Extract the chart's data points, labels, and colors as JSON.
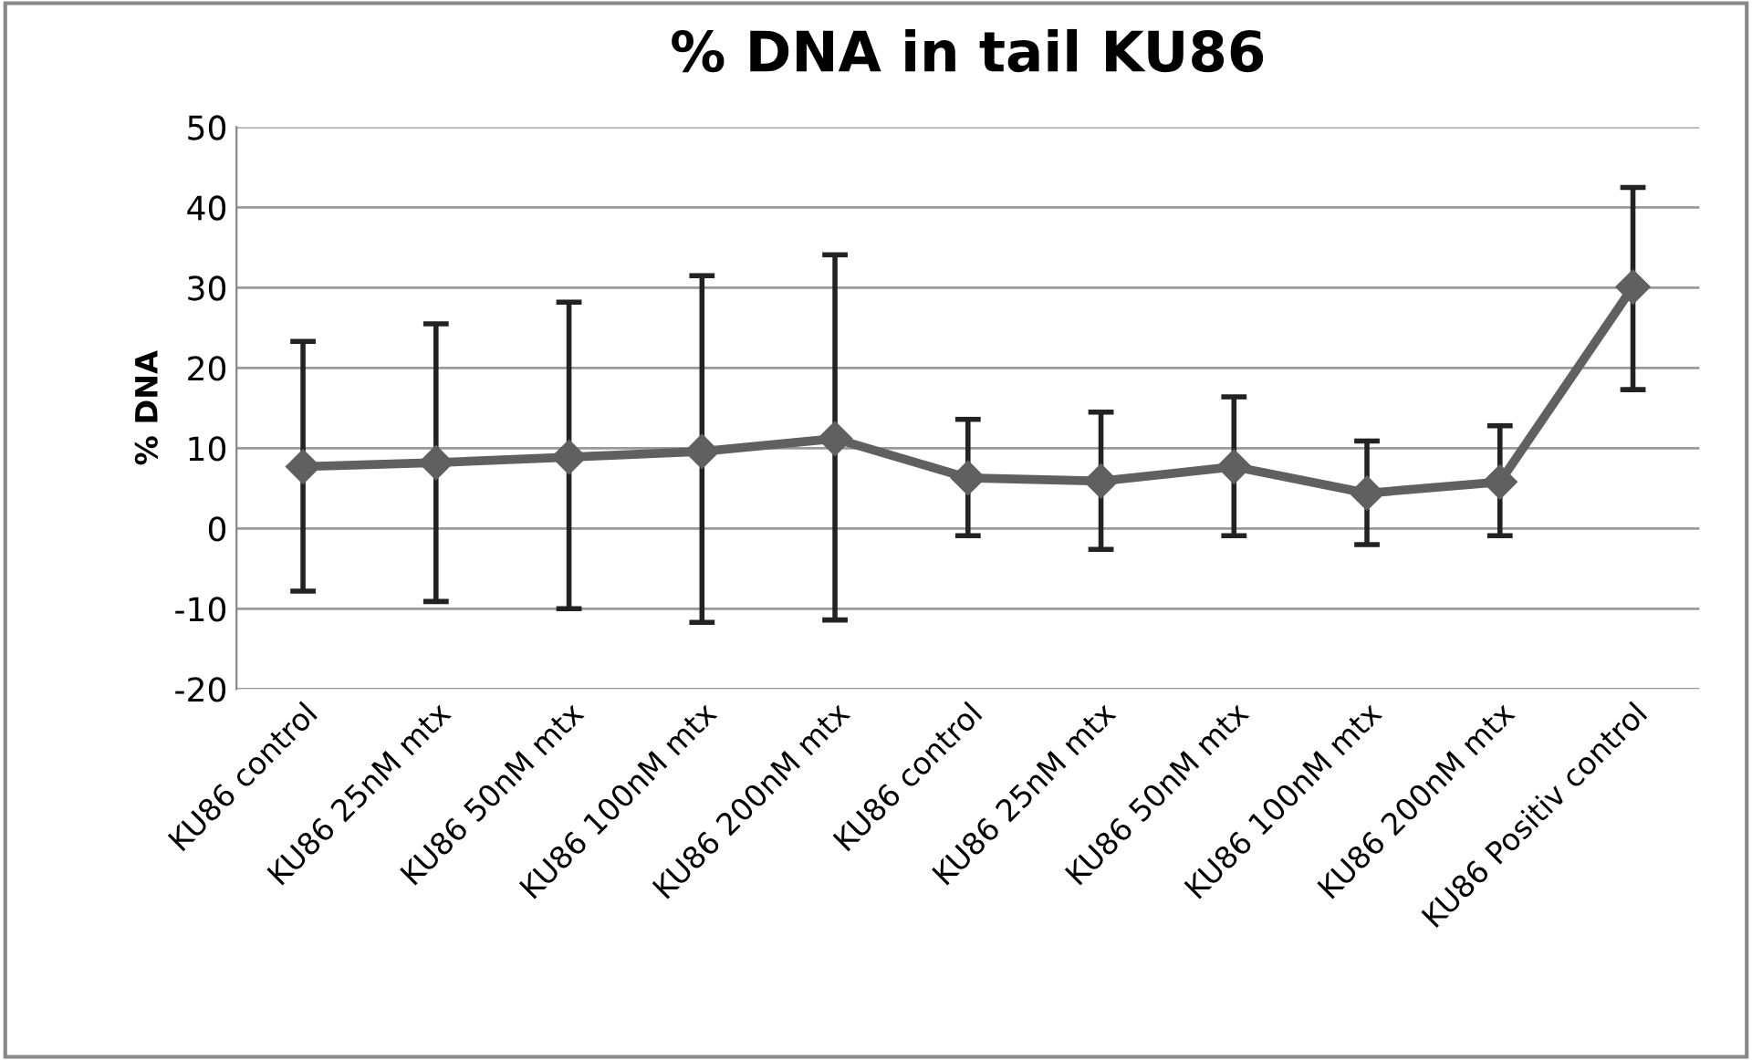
{
  "chart_data": {
    "type": "line",
    "title": "% DNA in tail KU86",
    "ylabel": "% DNA",
    "categories": [
      "KU86 control",
      "KU86 25nM mtx",
      "KU86 50nM mtx",
      "KU86 100nM mtx",
      "KU86 200nM mtx",
      "KU86 control",
      "KU86 25nM mtx",
      "KU86 50nM mtx",
      "KU86 100nM mtx",
      "KU86 200nM mtx",
      "KU86 Positiv control"
    ],
    "series": [
      {
        "color": "#606060",
        "values": [
          7.7,
          8.2,
          8.9,
          9.6,
          11.2,
          6.3,
          5.9,
          7.7,
          4.4,
          5.8,
          30.1
        ],
        "errors": [
          [
            -7.8,
            23.3
          ],
          [
            -9.1,
            25.5
          ],
          [
            -10.0,
            28.2
          ],
          [
            -11.7,
            31.5
          ],
          [
            -11.4,
            34.1
          ],
          [
            -0.9,
            13.6
          ],
          [
            -2.6,
            14.5
          ],
          [
            -0.9,
            16.4
          ],
          [
            -2.0,
            10.9
          ],
          [
            -0.9,
            12.8
          ],
          [
            17.3,
            42.5
          ]
        ]
      }
    ],
    "ylim": [
      -20,
      50
    ],
    "yticks": [
      -20,
      -10,
      0,
      10,
      20,
      30,
      40,
      50
    ],
    "grid": "y",
    "legend": false,
    "marker": "diamond",
    "line_style": "solid"
  }
}
